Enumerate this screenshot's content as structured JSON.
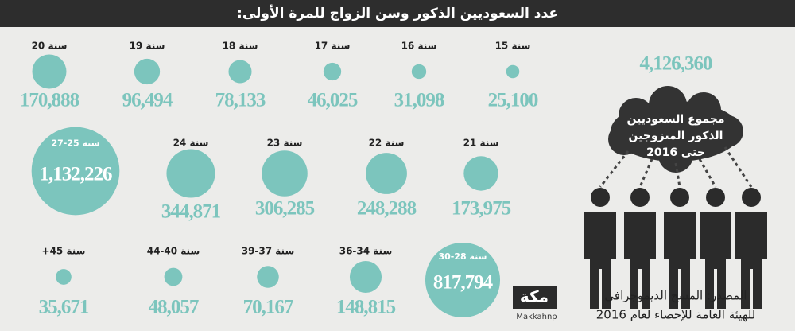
{
  "chart_data": {
    "type": "bubble",
    "title": "عدد السعوديين الذكور وسن الزواج للمرة الأولى:",
    "categories": [
      "15 سنة",
      "16 سنة",
      "17 سنة",
      "18 سنة",
      "19 سنة",
      "20 سنة",
      "21 سنة",
      "22 سنة",
      "23 سنة",
      "24 سنة",
      "27-25 سنة",
      "30-28 سنة",
      "36-34 سنة",
      "39-37 سنة",
      "44-40 سنة",
      "+45 سنة"
    ],
    "values": [
      25100,
      31098,
      46025,
      78133,
      96494,
      170888,
      173975,
      248288,
      306285,
      344871,
      1132226,
      817794,
      148815,
      70167,
      48057,
      35671
    ],
    "value_labels": [
      "25,100",
      "31,098",
      "46,025",
      "78,133",
      "96,494",
      "170,888",
      "173,975",
      "248,288",
      "306,285",
      "344,871",
      "1,132,226",
      "817,794",
      "148,815",
      "70,167",
      "48,057",
      "35,671"
    ],
    "color": "#7cc5bd",
    "total": {
      "value": 4126360,
      "label": "4,126,360"
    },
    "total_caption": [
      "مجموع السعوديين",
      "الذكور المتزوجين",
      "حتى 2016"
    ],
    "source": [
      "المصدر: المسح الديموجرافي",
      "للهيئة العامة للإحصاء لعام 2016"
    ],
    "logo": "مكة",
    "handle": "Makkahnp"
  }
}
